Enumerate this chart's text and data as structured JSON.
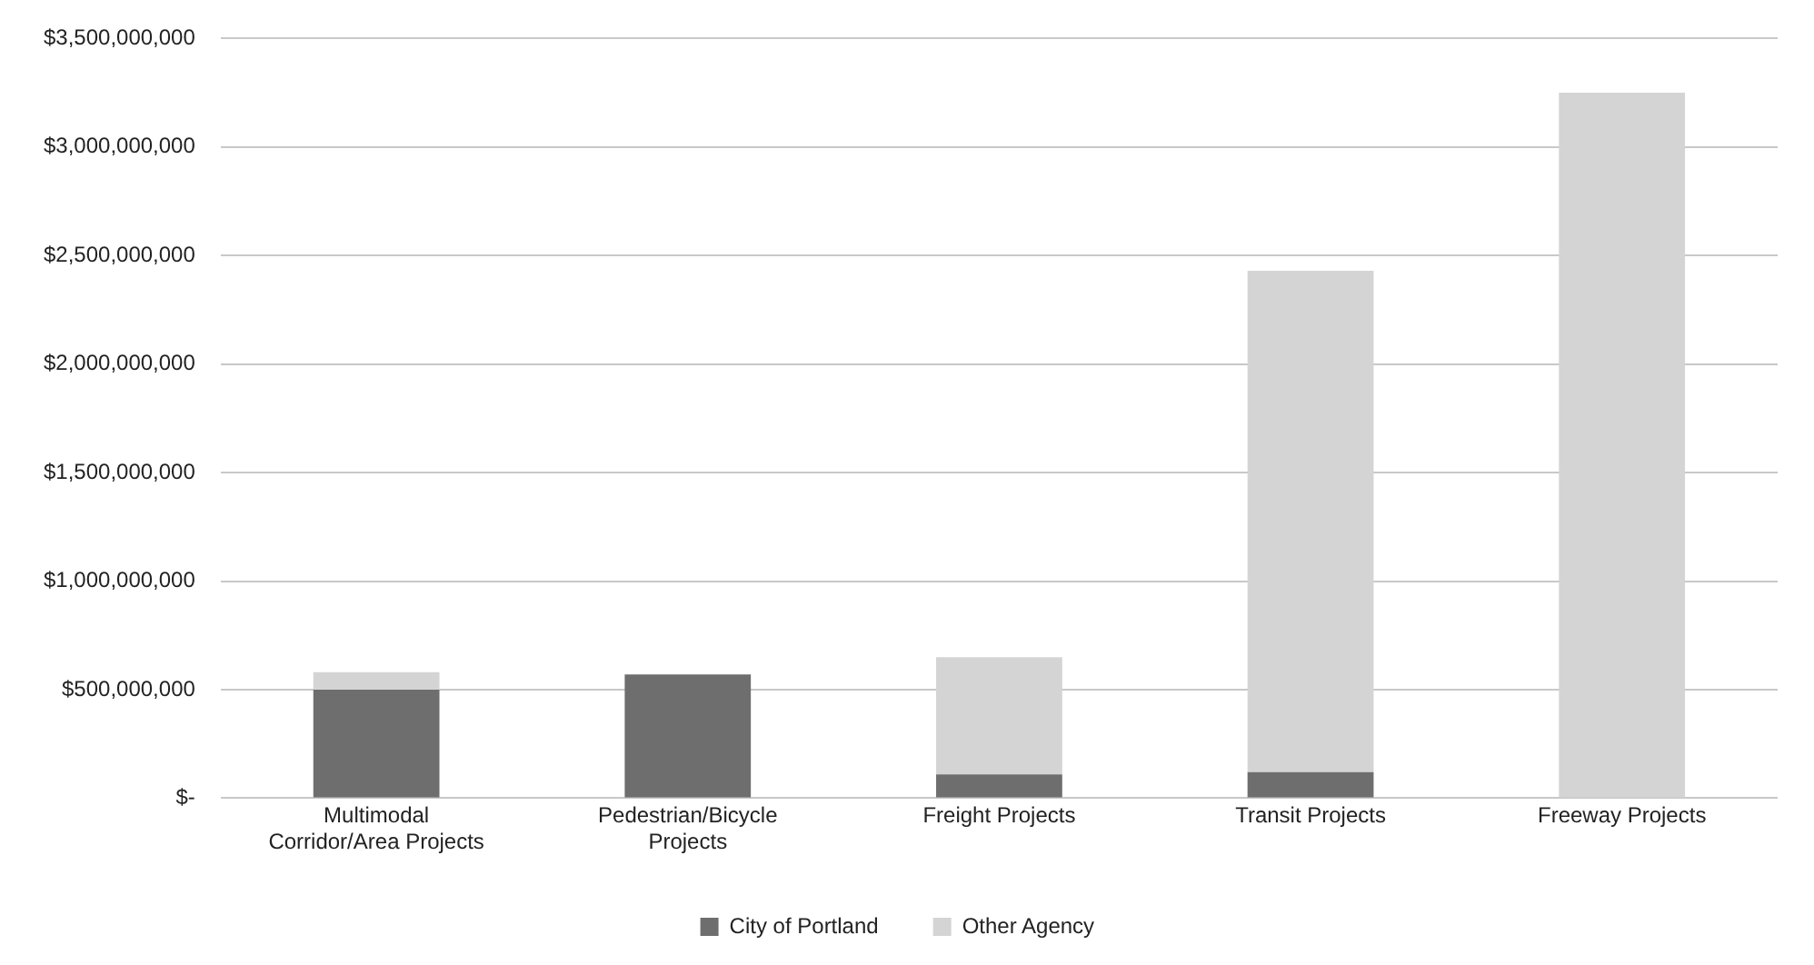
{
  "chart_data": {
    "type": "bar",
    "stacked": true,
    "categories": [
      [
        "Multimodal",
        "Corridor/Area Projects"
      ],
      [
        "Pedestrian/Bicycle",
        "Projects"
      ],
      "Freight Projects",
      "Transit Projects",
      "Freeway Projects"
    ],
    "series": [
      {
        "name": "City of Portland",
        "color": "#6e6e6e",
        "values": [
          500000000,
          570000000,
          110000000,
          120000000,
          0
        ]
      },
      {
        "name": "Other Agency",
        "color": "#d4d4d4",
        "values": [
          80000000,
          0,
          540000000,
          2310000000,
          3250000000
        ]
      }
    ],
    "ylim": [
      0,
      3500000000
    ],
    "yticks": [
      {
        "value": 0,
        "label": "$-"
      },
      {
        "value": 500000000,
        "label": "$500,000,000"
      },
      {
        "value": 1000000000,
        "label": "$1,000,000,000"
      },
      {
        "value": 1500000000,
        "label": "$1,500,000,000"
      },
      {
        "value": 2000000000,
        "label": "$2,000,000,000"
      },
      {
        "value": 2500000000,
        "label": "$2,500,000,000"
      },
      {
        "value": 3000000000,
        "label": "$3,000,000,000"
      },
      {
        "value": 3500000000,
        "label": "$3,500,000,000"
      }
    ],
    "grid": "y",
    "legend": "bottom"
  }
}
